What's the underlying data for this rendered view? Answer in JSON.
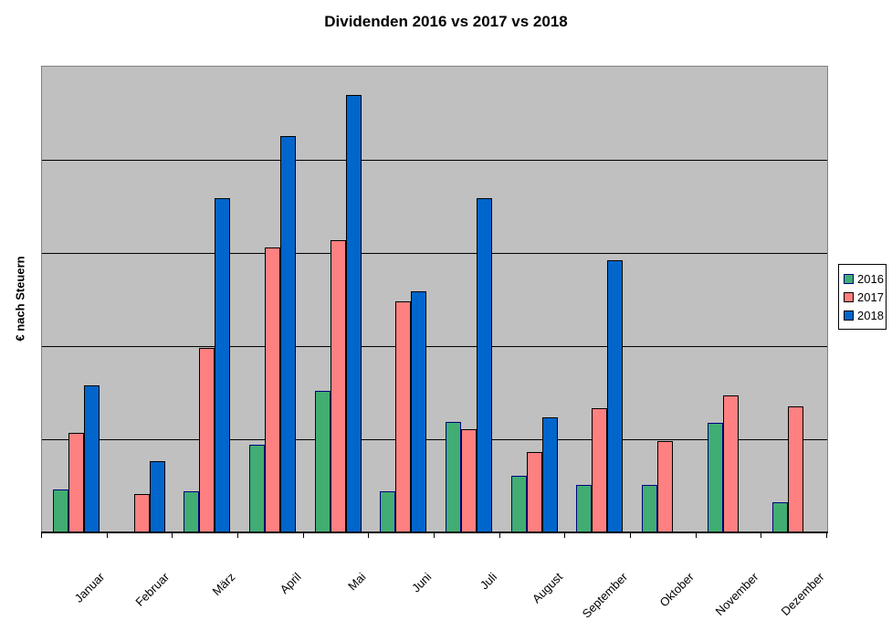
{
  "chart_data": {
    "type": "bar",
    "title": "Dividenden 2016 vs 2017 vs 2018",
    "ylabel": "€ nach Steuern",
    "xlabel": "",
    "categories": [
      "Januar",
      "Februar",
      "März",
      "April",
      "Mai",
      "Juni",
      "Juli",
      "August",
      "September",
      "Oktober",
      "November",
      "Dezember"
    ],
    "series": [
      {
        "name": "2016",
        "color": "#42AD72",
        "border_color": "#000080",
        "values": [
          0.46,
          null,
          0.44,
          0.94,
          1.52,
          0.44,
          1.19,
          0.61,
          0.51,
          0.51,
          1.18,
          0.32
        ]
      },
      {
        "name": "2017",
        "color": "#FF8080",
        "border_color": "#000000",
        "values": [
          1.07,
          0.41,
          1.98,
          3.06,
          3.14,
          2.48,
          1.11,
          0.86,
          1.33,
          0.98,
          1.47,
          1.35
        ]
      },
      {
        "name": "2018",
        "color": "#0066CC",
        "border_color": "#000000",
        "values": [
          1.58,
          0.76,
          3.59,
          4.25,
          4.7,
          2.59,
          3.59,
          1.24,
          2.92,
          null,
          null,
          null
        ]
      }
    ],
    "ylim": [
      0,
      5
    ],
    "grid": true,
    "gridline_interval": 1,
    "gridline_color": "#000000",
    "y_tick_labels_visible": false,
    "plot_background": "#C0C0C0",
    "plot_border_color": "#808080",
    "legend_position": "right",
    "legend_labels": [
      "2016",
      "2017",
      "2018"
    ]
  }
}
